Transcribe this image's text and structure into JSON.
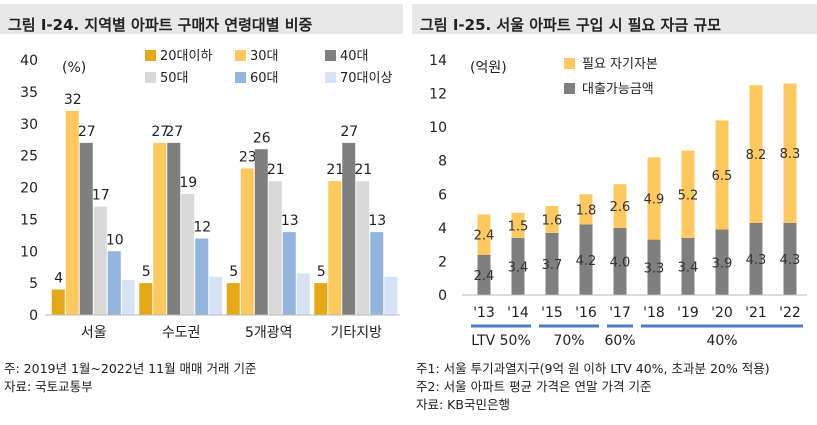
{
  "left": {
    "title": "그림 Ⅰ-24. 지역별 아파트 구매자 연령대별 비중",
    "notes": [
      "주: 2019년 1월~2022년 11월 매매 거래 기준",
      "자료: 국토교통부"
    ],
    "chart_data": {
      "type": "bar",
      "unit_label": "(%)",
      "categories": [
        "서울",
        "수도권",
        "5개광역",
        "기타지방"
      ],
      "series": [
        {
          "name": "20대이하",
          "color": "#e6a817",
          "values": [
            4,
            5,
            5,
            5
          ]
        },
        {
          "name": "30대",
          "color": "#fdc85e",
          "values": [
            32,
            27,
            23,
            21
          ]
        },
        {
          "name": "40대",
          "color": "#7f7f7f",
          "values": [
            27,
            27,
            26,
            27
          ]
        },
        {
          "name": "50대",
          "color": "#d9d9d9",
          "values": [
            17,
            19,
            21,
            21
          ]
        },
        {
          "name": "60대",
          "color": "#93b4dc",
          "values": [
            10,
            12,
            13,
            13
          ]
        },
        {
          "name": "70대이상",
          "color": "#d5e3f5",
          "values": [
            5.5,
            6,
            6.5,
            6
          ]
        }
      ],
      "data_labels": [
        [
          "4",
          "32",
          "27",
          "17",
          "10"
        ],
        [
          "5",
          "27",
          "27",
          "19",
          "12"
        ],
        [
          "5",
          "23",
          "26",
          "21",
          "13"
        ],
        [
          "5",
          "21",
          "27",
          "21",
          "13"
        ]
      ],
      "yticks": [
        "0",
        "5",
        "10",
        "15",
        "20",
        "25",
        "30",
        "35",
        "40"
      ],
      "ylim": [
        0,
        40
      ],
      "legend_position": "top",
      "grid": false
    }
  },
  "right": {
    "title": "그림 Ⅰ-25. 서울 아파트 구입 시 필요 자금 규모",
    "notes": [
      "주1: 서울 투기과열지구(9억 원 이하 LTV 40%, 초과분 20% 적용)",
      "주2: 서울 아파트 평균 가격은 연말 가격 기준",
      "자료: KB국민은행"
    ],
    "chart_data": {
      "type": "bar",
      "stacked": true,
      "unit_label": "(억원)",
      "categories": [
        "'13",
        "'14",
        "'15",
        "'16",
        "'17",
        "'18",
        "'19",
        "'20",
        "'21",
        "'22"
      ],
      "series": [
        {
          "name": "대출가능금액",
          "color": "#7f7f7f",
          "values": [
            2.4,
            3.4,
            3.7,
            4.2,
            4.0,
            3.3,
            3.4,
            3.9,
            4.3,
            4.3
          ]
        },
        {
          "name": "필요 자기자본",
          "color": "#fdc85e",
          "values": [
            2.4,
            1.5,
            1.6,
            1.8,
            2.6,
            4.9,
            5.2,
            6.5,
            8.2,
            8.3
          ]
        }
      ],
      "bottom_labels": [
        "2.4",
        "3.4",
        "3.7",
        "4.2",
        "4.0",
        "3.3",
        "3.4",
        "3.9",
        "4.3",
        "4.3"
      ],
      "top_labels": [
        "2.4",
        "1.5",
        "1.6",
        "1.8",
        "2.6",
        "4.9",
        "5.2",
        "6.5",
        "8.2",
        "8.3"
      ],
      "yticks": [
        "0",
        "2",
        "4",
        "6",
        "8",
        "10",
        "12",
        "14"
      ],
      "ylim": [
        0,
        14
      ],
      "legend_position": "top-left",
      "grid": false,
      "ltv_groups": [
        {
          "label": "LTV 50%",
          "from": 0,
          "to": 1
        },
        {
          "label": "70%",
          "from": 2,
          "to": 3
        },
        {
          "label": "60%",
          "from": 4,
          "to": 4
        },
        {
          "label": "40%",
          "from": 5,
          "to": 9
        }
      ]
    }
  }
}
